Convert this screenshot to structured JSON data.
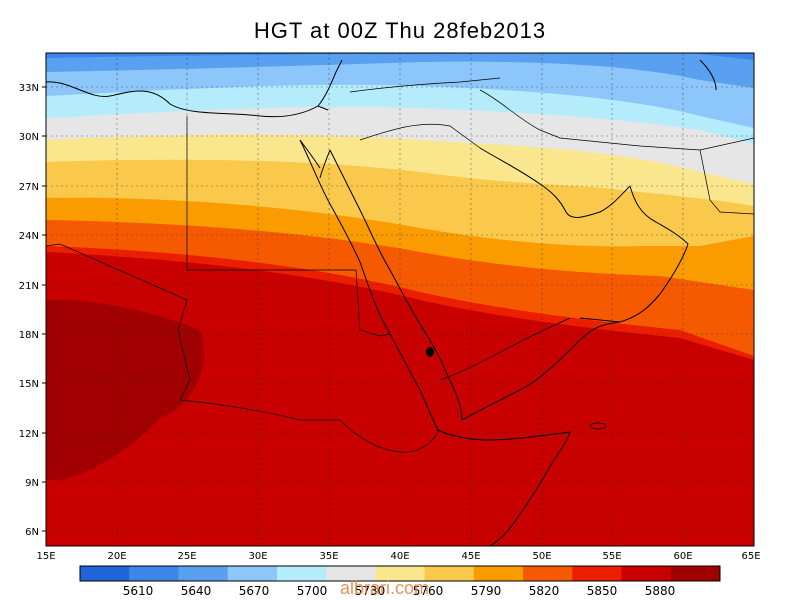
{
  "title": "HGT at 00Z Thu 28feb2013",
  "lat_labels": [
    "33N",
    "30N",
    "27N",
    "24N",
    "21N",
    "18N",
    "15N",
    "12N",
    "9N",
    "6N"
  ],
  "lon_labels": [
    "15E",
    "20E",
    "25E",
    "30E",
    "35E",
    "40E",
    "45E",
    "50E",
    "55E",
    "60E",
    "65E"
  ],
  "colorbar": {
    "colors": [
      "#1f64d8",
      "#3c86ea",
      "#5aa0f0",
      "#8cc6fa",
      "#b4ecfc",
      "#e6e6e6",
      "#fae68c",
      "#fac84a",
      "#fa9b00",
      "#f55a00",
      "#eb1e00",
      "#c80000",
      "#a00000"
    ],
    "labels": [
      "5610",
      "5640",
      "5670",
      "5700",
      "5730",
      "5760",
      "5790",
      "5820",
      "5850",
      "5880"
    ]
  },
  "watermark": "albrari.com",
  "colors": {
    "c5640": "#3c86ea",
    "c5670": "#5aa0f0",
    "c5700": "#8cc6fa",
    "c5730": "#b4ecfc",
    "c5760": "#e6e6e6",
    "c5790": "#fae68c",
    "c5820": "#fac84a",
    "c5850": "#fa9b00",
    "c5880": "#f55a00",
    "c5900": "#eb1e00",
    "c5920": "#c80000",
    "c5940": "#a00000"
  }
}
